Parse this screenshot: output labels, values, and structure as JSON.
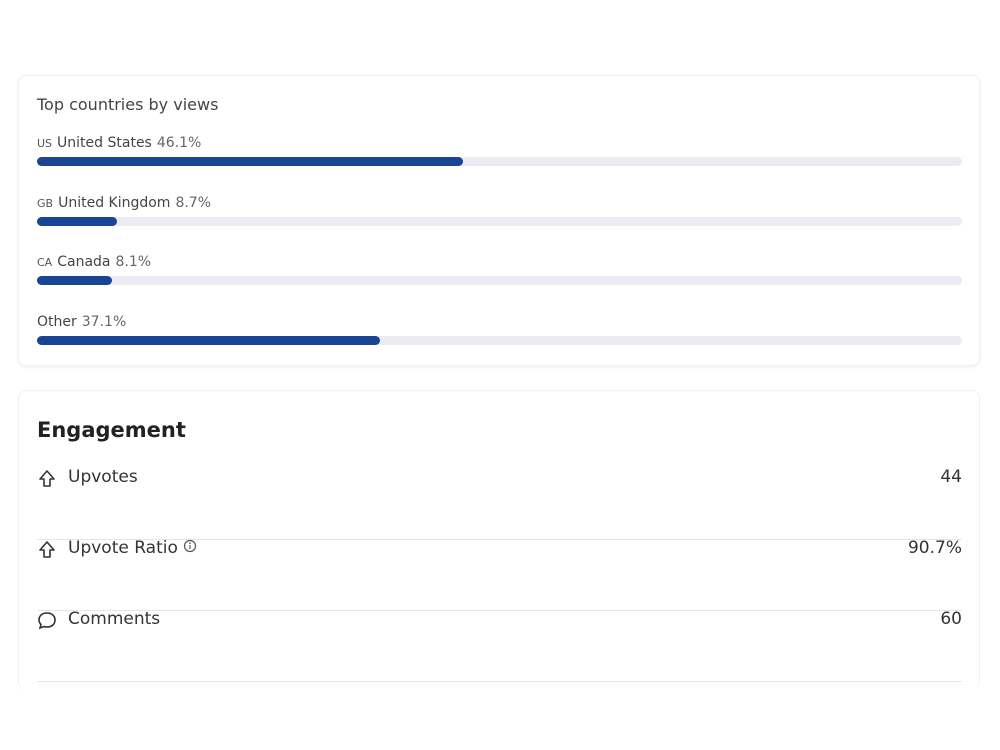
{
  "countries_card": {
    "title": "Top countries by views",
    "countries": [
      {
        "code": "US",
        "name": "United States",
        "value": 46.1,
        "value_label": "46.1%"
      },
      {
        "code": "GB",
        "name": "United Kingdom",
        "value": 8.7,
        "value_label": "8.7%"
      },
      {
        "code": "CA",
        "name": "Canada",
        "value": 8.1,
        "value_label": "8.1%"
      },
      {
        "name": "Other",
        "value": 37.1,
        "value_label": "37.1%"
      }
    ]
  },
  "engagement_card": {
    "title": "Engagement",
    "rows": [
      {
        "icon": "upvote",
        "name": "Upvotes",
        "value": 44
      },
      {
        "icon": "upvote",
        "name": "Upvote Ratio",
        "info": true,
        "value": 90.7,
        "value_label": "90.7%"
      },
      {
        "icon": "comment",
        "name": "Comments",
        "value": 60
      }
    ]
  }
}
